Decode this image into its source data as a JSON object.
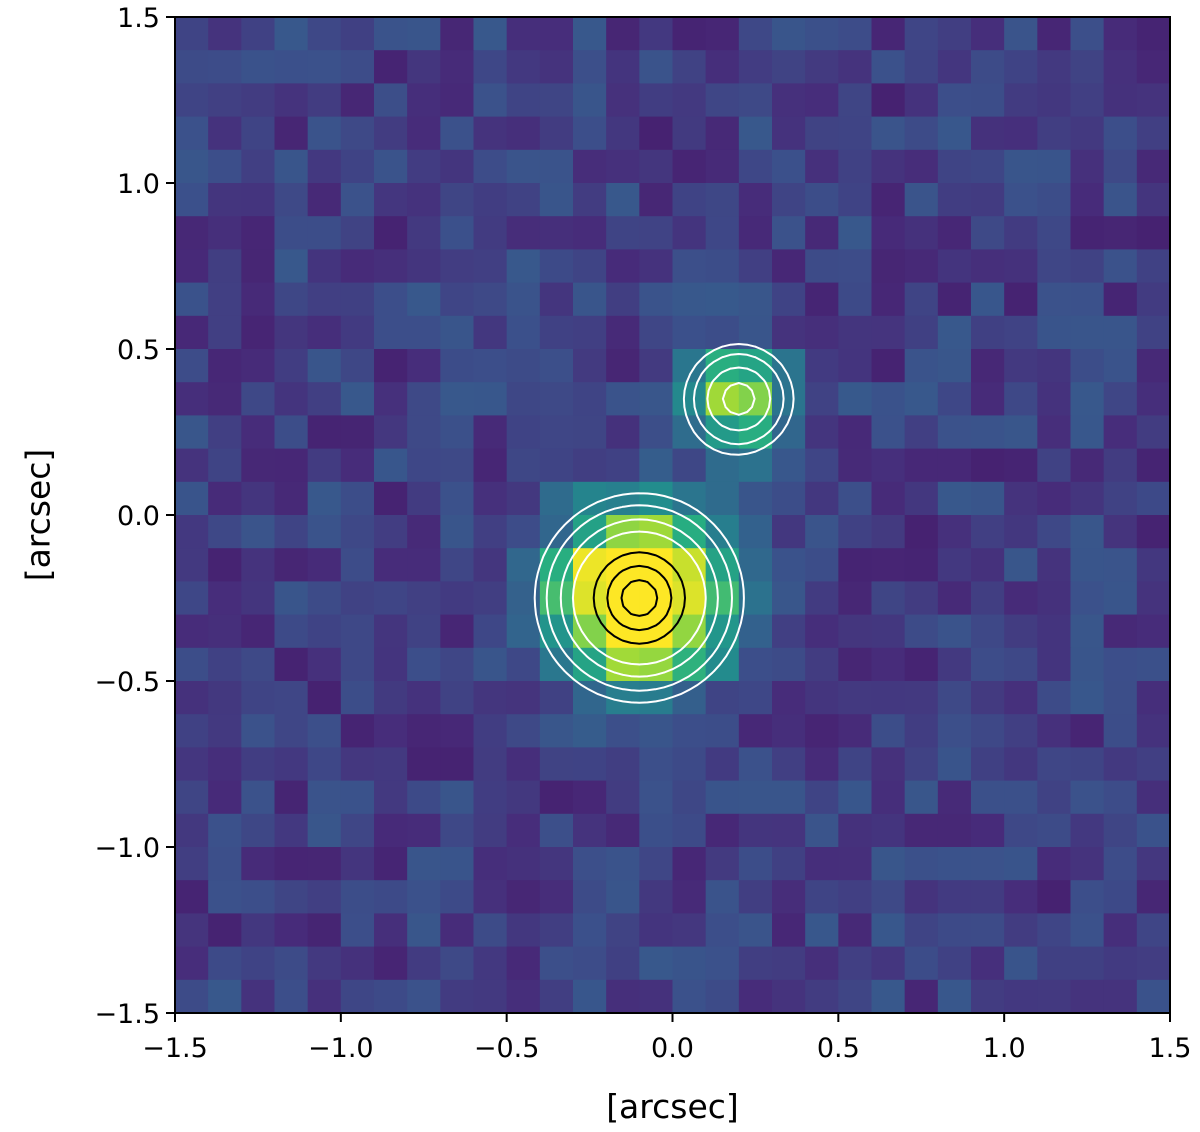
{
  "chart_data": {
    "type": "heatmap",
    "title": "",
    "xlabel": "[arcsec]",
    "ylabel": "[arcsec]",
    "xlim": [
      -1.5,
      1.5
    ],
    "ylim": [
      -1.5,
      1.5
    ],
    "grid_size": [
      30,
      30
    ],
    "pixel_scale_arcsec": 0.1,
    "colormap": "viridis",
    "xticks": [
      "−1.5",
      "−1.0",
      "−0.5",
      "0.0",
      "0.5",
      "1.0",
      "1.5"
    ],
    "yticks": [
      "−1.5",
      "−1.0",
      "−0.5",
      "0.0",
      "0.5",
      "1.0",
      "1.5"
    ],
    "xtick_values": [
      -1.5,
      -1.0,
      -0.5,
      0.0,
      0.5,
      1.0,
      1.5
    ],
    "ytick_values": [
      -1.5,
      -1.0,
      -0.5,
      0.0,
      0.5,
      1.0,
      1.5
    ],
    "grid": false,
    "legend": "none",
    "sources": [
      {
        "x": -0.1,
        "y": -0.25,
        "peak": 1.0,
        "sigma": 0.17
      },
      {
        "x": 0.2,
        "y": 0.35,
        "peak": 0.55,
        "sigma": 0.11
      }
    ],
    "contours": {
      "white_levels": [
        0.18,
        0.26,
        0.38,
        0.5
      ],
      "black_levels": [
        0.72,
        0.85,
        0.95
      ],
      "white_color": "#ffffff",
      "black_color": "#000000"
    }
  }
}
